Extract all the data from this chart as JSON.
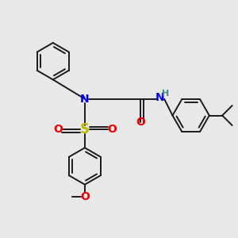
{
  "bg_color": "#e8e8e8",
  "bond_color": "#1a1a1a",
  "N_color": "#0000ee",
  "O_color": "#ee0000",
  "S_color": "#bbbb00",
  "H_color": "#3a8888",
  "figsize": [
    3.0,
    3.0
  ],
  "dpi": 100,
  "xlim": [
    0,
    10
  ],
  "ylim": [
    0,
    10
  ],
  "lw": 1.4,
  "ring_r": 0.75,
  "dbl_off": 0.13
}
